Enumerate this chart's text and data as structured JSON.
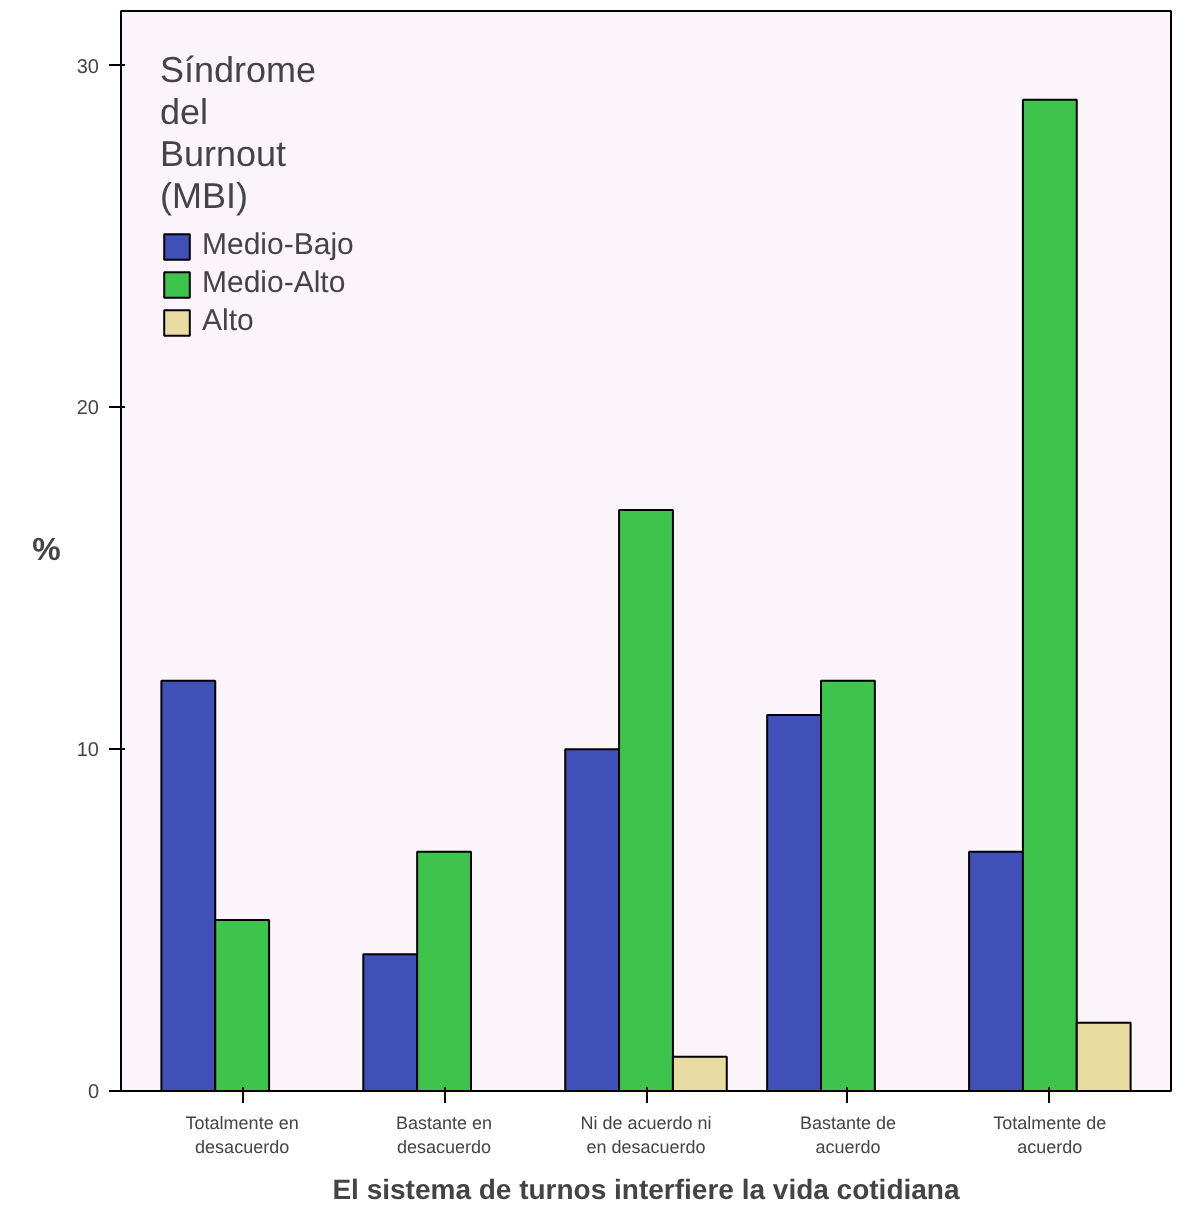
{
  "chart_data": {
    "type": "bar",
    "xlabel": "El sistema de turnos interfiere la vida cotidiana",
    "ylabel": "%",
    "legend_title": "Síndrome del Burnout (MBI)",
    "categories": [
      "Totalmente en desacuerdo",
      "Bastante en desacuerdo",
      "Ni de acuerdo ni en desacuerdo",
      "Bastante de acuerdo",
      "Totalmente de acuerdo"
    ],
    "series": [
      {
        "name": "Medio-Bajo",
        "color": "#4050b8",
        "values": [
          12,
          4,
          10,
          11,
          7
        ]
      },
      {
        "name": "Medio-Alto",
        "color": "#3ec44c",
        "values": [
          5,
          7,
          17,
          12,
          29
        ]
      },
      {
        "name": "Alto",
        "color": "#e8dca2",
        "values": [
          null,
          null,
          1,
          null,
          2
        ]
      }
    ],
    "ylim": [
      0,
      31.6
    ],
    "yticks": [
      0,
      10,
      20,
      30
    ],
    "grid": false,
    "legend": "top left"
  }
}
